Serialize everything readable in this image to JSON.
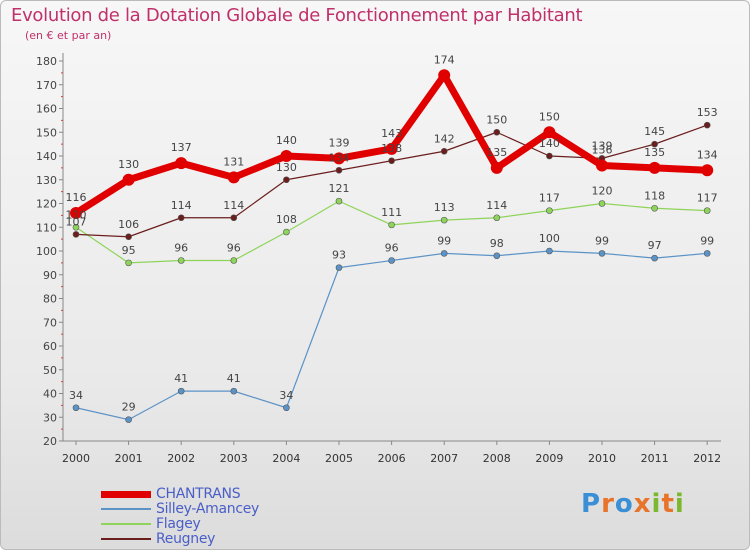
{
  "title": "Evolution de la Dotation Globale de Fonctionnement par Habitant",
  "subtitle": "(en € et par an)",
  "logo": {
    "text": "Proxiti",
    "letter_colors": [
      "#3a8fd6",
      "#e8732a",
      "#3a8fd6",
      "#e8732a",
      "#7cb82f",
      "#e8732a",
      "#7cb82f"
    ]
  },
  "chart_data": {
    "type": "line",
    "title": "Evolution de la Dotation Globale de Fonctionnement par Habitant",
    "subtitle": "(en € et par an)",
    "x": [
      "2000",
      "2001",
      "2002",
      "2003",
      "2004",
      "2005",
      "2006",
      "2007",
      "2008",
      "2009",
      "2010",
      "2011",
      "2012"
    ],
    "ylim": [
      20,
      180
    ],
    "yticks": [
      20,
      30,
      40,
      50,
      60,
      70,
      80,
      90,
      100,
      110,
      120,
      130,
      140,
      150,
      160,
      170,
      180
    ],
    "grid": false,
    "legend_position": "bottom-left",
    "series": [
      {
        "name": "CHANTRANS",
        "color": "#e00000",
        "values": [
          116,
          130,
          137,
          131,
          140,
          139,
          143,
          174,
          135,
          150,
          136,
          135,
          134
        ]
      },
      {
        "name": "Silley-Amancey",
        "color": "#5b93c7",
        "values": [
          34,
          29,
          41,
          41,
          34,
          93,
          96,
          99,
          98,
          100,
          99,
          97,
          99
        ]
      },
      {
        "name": "Flagey",
        "color": "#8fd45a",
        "values": [
          110,
          95,
          96,
          96,
          108,
          121,
          111,
          113,
          114,
          117,
          120,
          118,
          117
        ]
      },
      {
        "name": "Reugney",
        "color": "#6b1e1e",
        "values": [
          107,
          106,
          114,
          114,
          130,
          134,
          138,
          142,
          150,
          140,
          139,
          145,
          153
        ]
      }
    ],
    "data_labels": {
      "CHANTRANS": [
        "116",
        "130",
        "137",
        "131",
        "140",
        "139",
        "143",
        "174",
        "135",
        "150",
        "136",
        "135",
        "134"
      ],
      "Silley-Amancey": [
        "34",
        "29",
        "41",
        "41",
        "34",
        "93",
        "96",
        "99",
        "98",
        "100",
        "99",
        "97",
        "99"
      ],
      "Flagey": [
        "110",
        "95",
        "96",
        "96",
        "108",
        "121",
        "111",
        "113",
        "114",
        "117",
        "120",
        "118",
        "117"
      ],
      "Reugney": [
        "107",
        "106",
        "114",
        "114",
        "130",
        "134",
        "138",
        "142",
        "150",
        "140",
        "139",
        "145",
        "153"
      ]
    }
  }
}
